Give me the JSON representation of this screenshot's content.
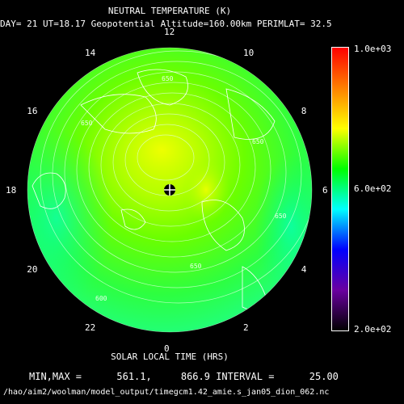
{
  "header": {
    "title": "NEUTRAL TEMPERATURE (K)",
    "subtitle": "DAY= 21 UT=18.17 Geopotential Altitude=160.00km PERIMLAT= 32.5"
  },
  "colorbar": {
    "max_label": "1.0e+03",
    "mid_label": "6.0e+02",
    "min_label": "2.0e+02",
    "min": 200,
    "max": 1000,
    "colors": [
      "#000000",
      "#6a00a0",
      "#0000ff",
      "#00ffff",
      "#00ff00",
      "#ffff00",
      "#ff8000",
      "#ff0000"
    ]
  },
  "polar_axis": {
    "label": "SOLAR LOCAL TIME (HRS)",
    "hour_labels": [
      "0",
      "2",
      "4",
      "6",
      "8",
      "10",
      "12",
      "14",
      "16",
      "18",
      "20",
      "22"
    ]
  },
  "contour_labels": [
    "650",
    "650",
    "650",
    "650",
    "600",
    "650"
  ],
  "stats": {
    "text": "MIN,MAX =      561.1,     866.9 INTERVAL =      25.00"
  },
  "footer": {
    "path": "/hao/aim2/woolman/model_output/timegcm1.42_amie.s_jan05_dion_062.nc"
  },
  "chart_data": {
    "type": "heatmap",
    "projection": "polar-stereographic north",
    "variable": "NEUTRAL TEMPERATURE (K)",
    "min": 561.1,
    "max": 866.9,
    "interval": 25.0,
    "colorbar_range": [
      200,
      1000
    ],
    "contour_labels_visible": [
      650,
      650,
      650,
      650,
      600,
      650
    ],
    "axis_label": "SOLAR LOCAL TIME (HRS)",
    "hours": [
      0,
      2,
      4,
      6,
      8,
      10,
      12,
      14,
      16,
      18,
      20,
      22
    ]
  }
}
